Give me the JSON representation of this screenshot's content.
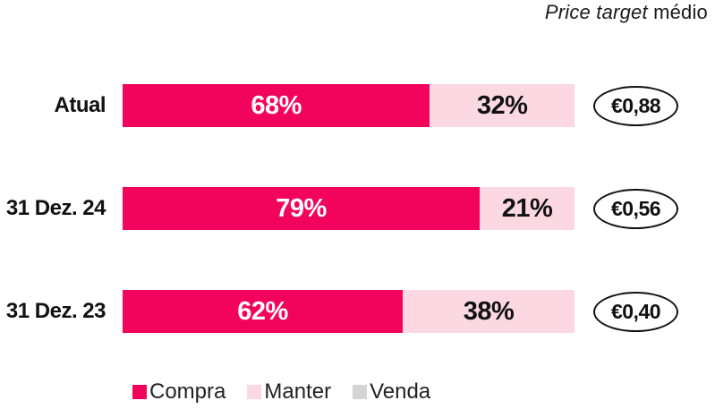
{
  "title": {
    "italic": "Price target",
    "regular": " médio"
  },
  "colors": {
    "compra": "#F2035C",
    "manter": "#FCD9E2",
    "venda": "#D4D4D4",
    "text": "#111111"
  },
  "chart_data": {
    "type": "bar",
    "orientation": "horizontal",
    "stacked": true,
    "categories": [
      "Atual",
      "31 Dez. 24",
      "31 Dez. 23"
    ],
    "series": [
      {
        "name": "Compra",
        "values": [
          68,
          79,
          62
        ],
        "color": "#F2035C"
      },
      {
        "name": "Manter",
        "values": [
          32,
          21,
          38
        ],
        "color": "#FCD9E2"
      },
      {
        "name": "Venda",
        "values": [
          0,
          0,
          0
        ],
        "color": "#D4D4D4"
      }
    ],
    "value_unit": "%",
    "xlim": [
      0,
      100
    ],
    "grid": false,
    "legend_position": "bottom",
    "annotations": {
      "label": "Price target médio",
      "price_targets": [
        "€0,88",
        "€0,56",
        "€0,40"
      ]
    }
  },
  "rows": [
    {
      "label": "Atual",
      "compra_pct": 68,
      "manter_pct": 32,
      "compra_label": "68%",
      "manter_label": "32%",
      "price_target": "€0,88"
    },
    {
      "label": "31 Dez. 24",
      "compra_pct": 79,
      "manter_pct": 21,
      "compra_label": "79%",
      "manter_label": "21%",
      "price_target": "€0,56"
    },
    {
      "label": "31 Dez. 23",
      "compra_pct": 62,
      "manter_pct": 38,
      "compra_label": "62%",
      "manter_label": "38%",
      "price_target": "€0,40"
    }
  ],
  "legend": [
    {
      "label": "Compra"
    },
    {
      "label": "Manter"
    },
    {
      "label": "Venda"
    }
  ]
}
